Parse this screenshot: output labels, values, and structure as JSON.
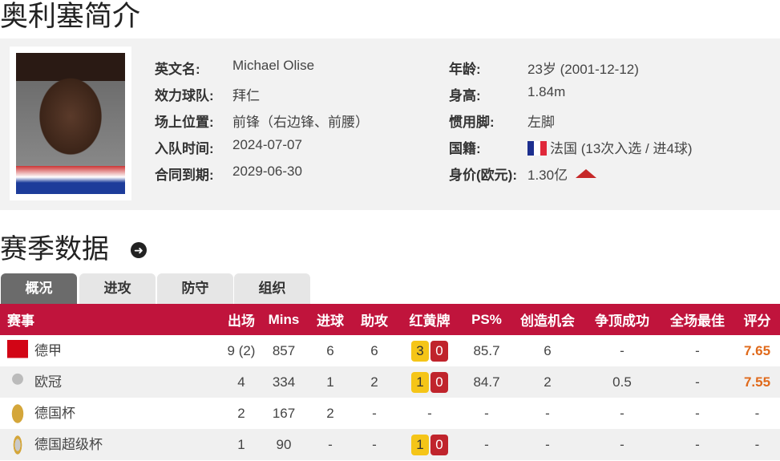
{
  "page_title": "奥利塞简介",
  "profile": {
    "left": [
      {
        "label": "英文名:",
        "value": "Michael Olise"
      },
      {
        "label": "效力球队:",
        "value": "拜仁"
      },
      {
        "label": "场上位置:",
        "value": "前锋（右边锋、前腰）"
      },
      {
        "label": "入队时间:",
        "value": "2024-07-07"
      },
      {
        "label": "合同到期:",
        "value": "2029-06-30"
      }
    ],
    "right": [
      {
        "label": "年龄:",
        "value": "23岁  (2001-12-12)"
      },
      {
        "label": "身高:",
        "value": "1.84m"
      },
      {
        "label": "惯用脚:",
        "value": "左脚"
      },
      {
        "label": "国籍:",
        "value": "法国 (13次入选 / 进4球)",
        "icon": "france-flag"
      },
      {
        "label": "身价(欧元):",
        "value": "1.30亿",
        "icon": "trend-up-icon"
      }
    ]
  },
  "section_title": "赛季数据",
  "tabs": [
    "概况",
    "进攻",
    "防守",
    "组织"
  ],
  "active_tab": "概况",
  "table": {
    "headers": [
      "赛事",
      "出场",
      "Mins",
      "进球",
      "助攻",
      "红黄牌",
      "PS%",
      "创造机会",
      "争顶成功",
      "全场最佳",
      "评分"
    ],
    "rows": [
      {
        "comp": "德甲",
        "logo": "bundesliga-logo",
        "apps": "9 (2)",
        "mins": "857",
        "goals": "6",
        "assists": "6",
        "yellow": "3",
        "red": "0",
        "ps": "85.7",
        "chances": "6",
        "aerial": "-",
        "motm": "-",
        "rating": "7.65"
      },
      {
        "comp": "欧冠",
        "logo": "champions-league-logo",
        "apps": "4",
        "mins": "334",
        "goals": "1",
        "assists": "2",
        "yellow": "1",
        "red": "0",
        "ps": "84.7",
        "chances": "2",
        "aerial": "0.5",
        "motm": "-",
        "rating": "7.55"
      },
      {
        "comp": "德国杯",
        "logo": "dfb-pokal-logo",
        "apps": "2",
        "mins": "167",
        "goals": "2",
        "assists": "-",
        "cards": "-",
        "ps": "-",
        "chances": "-",
        "aerial": "-",
        "motm": "-",
        "rating": "-"
      },
      {
        "comp": "德国超级杯",
        "logo": "supercup-logo",
        "apps": "1",
        "mins": "90",
        "goals": "-",
        "assists": "-",
        "yellow": "1",
        "red": "0",
        "ps": "-",
        "chances": "-",
        "aerial": "-",
        "motm": "-",
        "rating": "-"
      }
    ]
  },
  "colors": {
    "header": "#c0143c",
    "rating": "#e06a1b",
    "yellow_card": "#f5c518",
    "red_card": "#c0242c"
  }
}
